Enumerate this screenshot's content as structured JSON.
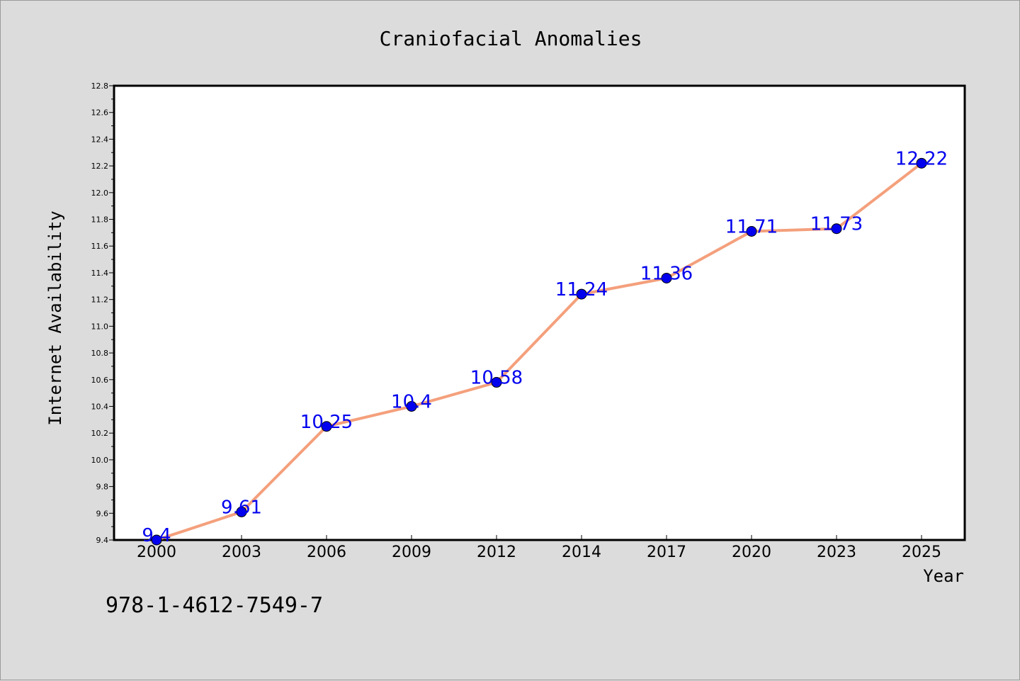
{
  "chart_data": {
    "type": "line",
    "title": "Craniofacial Anomalies",
    "xlabel": "Year",
    "ylabel": "Internet Availability",
    "categories": [
      "2000",
      "2003",
      "2006",
      "2009",
      "2012",
      "2014",
      "2017",
      "2020",
      "2023",
      "2025"
    ],
    "values": [
      9.4,
      9.61,
      10.25,
      10.4,
      10.58,
      11.24,
      11.36,
      11.71,
      11.73,
      12.22
    ],
    "data_labels": [
      "9.4",
      "9.61",
      "10.25",
      "10.4",
      "10.58",
      "11.24",
      "11.36",
      "11.71",
      "11.73",
      "12.22"
    ],
    "ylim": [
      9.4,
      12.8
    ],
    "yticks": [
      "9.4",
      "9.6",
      "9.8",
      "10.0",
      "10.2",
      "10.4",
      "10.6",
      "10.8",
      "11.0",
      "11.2",
      "11.4",
      "11.6",
      "11.8",
      "12.0",
      "12.2",
      "12.4",
      "12.6",
      "12.8"
    ],
    "grid": false,
    "legend": "none",
    "colors": {
      "line": "#f4a07c",
      "marker": "#0000ee",
      "label": "#0000ee",
      "background": "#dcdcdc",
      "plot_background": "#ffffff"
    }
  },
  "footnote": "978-1-4612-7549-7"
}
